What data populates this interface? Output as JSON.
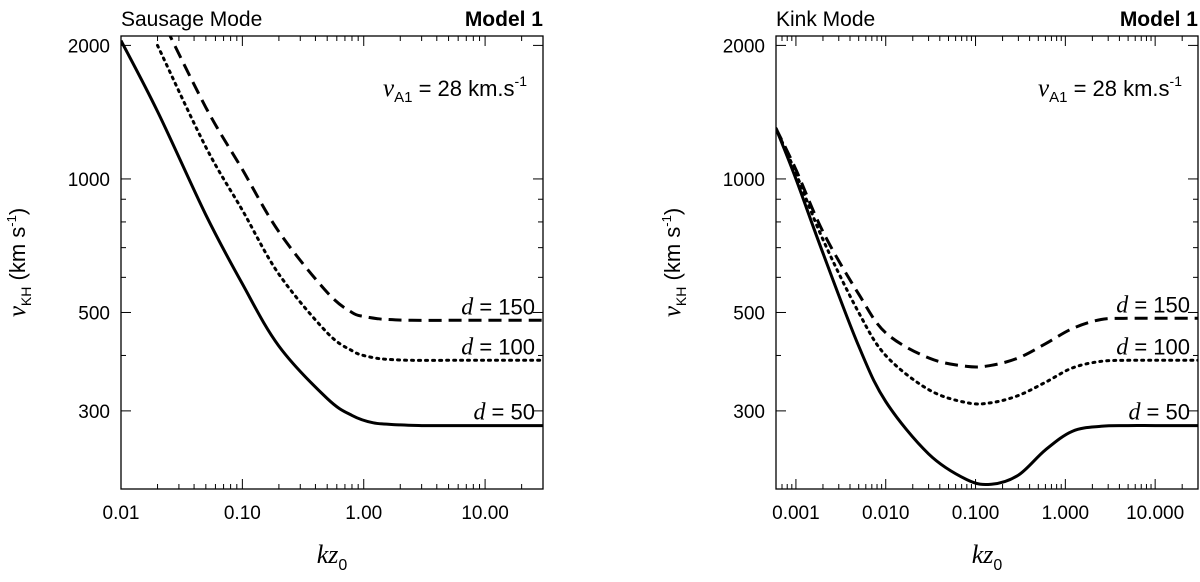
{
  "chart_data": [
    {
      "type": "line",
      "title": "Sausage Mode",
      "model_label": "Model 1",
      "annotation": {
        "prefix": "v",
        "sub": "A1",
        "suffix": " = 28 km.s",
        "sup": "-1"
      },
      "xlabel": {
        "main": "kz",
        "sub": "0"
      },
      "ylabel": {
        "main": "v",
        "sub": "KH",
        "unit": " (km s",
        "unit_sup": "-1",
        "unit_end": ")"
      },
      "xscale": "log",
      "yscale": "log",
      "xlim": [
        0.01,
        30
      ],
      "ylim": [
        200,
        2100
      ],
      "xticks": [
        {
          "v": 0.01,
          "label": "0.01"
        },
        {
          "v": 0.1,
          "label": "0.10"
        },
        {
          "v": 1,
          "label": "1.00"
        },
        {
          "v": 10,
          "label": "10.00"
        }
      ],
      "yticks": [
        {
          "v": 2000,
          "label": "2000"
        },
        {
          "v": 1000,
          "label": "1000"
        },
        {
          "v": 500,
          "label": "500"
        },
        {
          "v": 300,
          "label": "300"
        }
      ],
      "series": [
        {
          "name": "d = 150",
          "d": "150",
          "style": "dashed",
          "x": [
            0.02,
            0.05,
            0.1,
            0.2,
            0.5,
            0.8,
            1.0,
            1.3,
            1.6,
            2.5,
            5,
            10,
            30
          ],
          "y": [
            2400,
            1450,
            1050,
            760,
            555,
            500,
            490,
            484,
            482,
            480,
            480,
            480,
            480
          ]
        },
        {
          "name": "d = 100",
          "d": "100",
          "style": "dotted",
          "x": [
            0.02,
            0.05,
            0.1,
            0.2,
            0.5,
            0.8,
            1.0,
            1.3,
            1.6,
            2.5,
            5,
            10,
            30
          ],
          "y": [
            2000,
            1180,
            850,
            610,
            450,
            410,
            400,
            394,
            392,
            390,
            390,
            390,
            390
          ]
        },
        {
          "name": "d = 50",
          "d": "50",
          "style": "solid",
          "x": [
            0.01,
            0.02,
            0.05,
            0.1,
            0.2,
            0.5,
            0.8,
            1.2,
            2,
            3,
            5,
            10,
            30
          ],
          "y": [
            2050,
            1420,
            830,
            580,
            420,
            320,
            293,
            282,
            279,
            278,
            278,
            278,
            278
          ]
        }
      ]
    },
    {
      "type": "line",
      "title": "Kink Mode",
      "model_label": "Model 1",
      "annotation": {
        "prefix": "v",
        "sub": "A1",
        "suffix": " = 28 km.s",
        "sup": "-1"
      },
      "xlabel": {
        "main": "kz",
        "sub": "0"
      },
      "ylabel": {
        "main": "v",
        "sub": "KH",
        "unit": " (km s",
        "unit_sup": "-1",
        "unit_end": ")"
      },
      "xscale": "log",
      "yscale": "log",
      "xlim": [
        0.0006,
        30
      ],
      "ylim": [
        200,
        2100
      ],
      "xticks": [
        {
          "v": 0.001,
          "label": "0.001"
        },
        {
          "v": 0.01,
          "label": "0.010"
        },
        {
          "v": 0.1,
          "label": "0.100"
        },
        {
          "v": 1,
          "label": "1.000"
        },
        {
          "v": 10,
          "label": "10.000"
        }
      ],
      "yticks": [
        {
          "v": 2000,
          "label": "2000"
        },
        {
          "v": 1000,
          "label": "1000"
        },
        {
          "v": 500,
          "label": "500"
        },
        {
          "v": 300,
          "label": "300"
        }
      ],
      "series": [
        {
          "name": "d = 150",
          "d": "150",
          "style": "dashed",
          "x": [
            0.0006,
            0.001,
            0.002,
            0.005,
            0.01,
            0.03,
            0.08,
            0.15,
            0.3,
            0.6,
            1.2,
            2.5,
            5,
            10,
            30
          ],
          "y": [
            1300,
            1050,
            760,
            550,
            450,
            395,
            378,
            380,
            395,
            425,
            460,
            482,
            485,
            485,
            485
          ]
        },
        {
          "name": "d = 100",
          "d": "100",
          "style": "dotted",
          "x": [
            0.0006,
            0.001,
            0.002,
            0.005,
            0.01,
            0.03,
            0.08,
            0.15,
            0.3,
            0.6,
            1.2,
            2.5,
            5,
            10,
            30
          ],
          "y": [
            1300,
            1030,
            730,
            500,
            400,
            335,
            313,
            313,
            325,
            348,
            375,
            388,
            390,
            390,
            390
          ]
        },
        {
          "name": "d = 50",
          "d": "50",
          "style": "solid",
          "x": [
            0.0006,
            0.001,
            0.002,
            0.005,
            0.01,
            0.03,
            0.08,
            0.15,
            0.3,
            0.6,
            1.2,
            2.5,
            5,
            10,
            30
          ],
          "y": [
            1300,
            1000,
            680,
            420,
            315,
            240,
            210,
            205,
            215,
            245,
            270,
            277,
            278,
            278,
            278
          ]
        }
      ]
    }
  ]
}
